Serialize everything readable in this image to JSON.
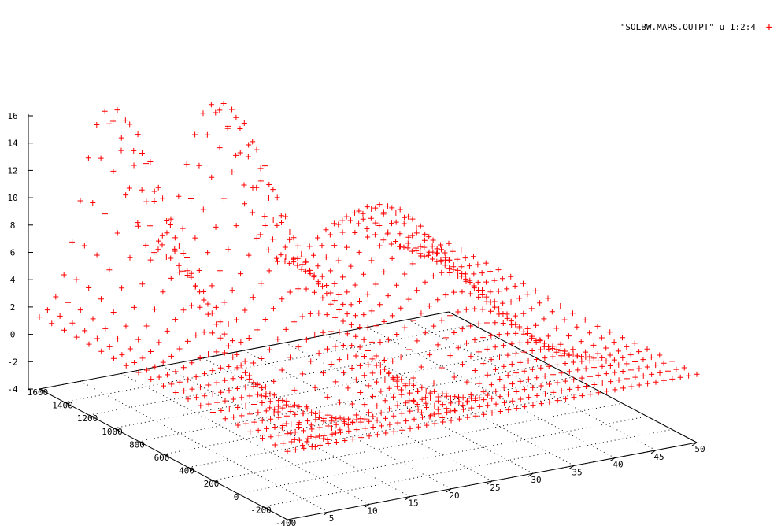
{
  "chart_data": {
    "type": "scatter",
    "title": "",
    "legend": {
      "label": "\"SOLBW.MARS.OUTPT\" u 1:2:4",
      "marker": "+",
      "placement": "top-right"
    },
    "colors": {
      "points": "#ff0000",
      "axes": "#000000",
      "grid": "#000000"
    },
    "grid": true,
    "x_axis": {
      "range": [
        0,
        50
      ],
      "ticks": [
        "5",
        "10",
        "15",
        "20",
        "25",
        "30",
        "35",
        "40",
        "45",
        "50"
      ]
    },
    "y_axis": {
      "range": [
        -400,
        1600
      ],
      "ticks": [
        "-400",
        "-200",
        "0",
        "200",
        "400",
        "600",
        "800",
        "1000",
        "1200",
        "1400",
        "1600"
      ]
    },
    "z_axis": {
      "range": [
        -4,
        16
      ],
      "ticks": [
        "-4",
        "-2",
        "0",
        "2",
        "4",
        "6",
        "8",
        "10",
        "12",
        "14",
        "16"
      ]
    },
    "surface_model": {
      "description_units": "x in [0,50], y in [-400,1600], z in [-4,16]",
      "x_step": 1,
      "y_step": 100,
      "hills": [
        {
          "x_center": 8,
          "y_center": 1500,
          "x_width": 4,
          "y_width": 500,
          "height": 16
        },
        {
          "x_center": 21,
          "y_center": 1500,
          "x_width": 5,
          "y_width": 500,
          "height": 15
        },
        {
          "x_center": 37,
          "y_center": 1200,
          "x_width": 5,
          "y_width": 500,
          "height": 7
        }
      ],
      "troughs": [
        {
          "x_center": 14,
          "y_center": 400,
          "x_width": 3,
          "y_width": 350,
          "depth": -4
        },
        {
          "x_center": 28,
          "y_center": 300,
          "x_width": 3,
          "y_width": 300,
          "depth": -3
        },
        {
          "x_center": 46,
          "y_center": 500,
          "x_width": 3,
          "y_width": 400,
          "depth": -1
        }
      ],
      "baseline": 1
    }
  }
}
